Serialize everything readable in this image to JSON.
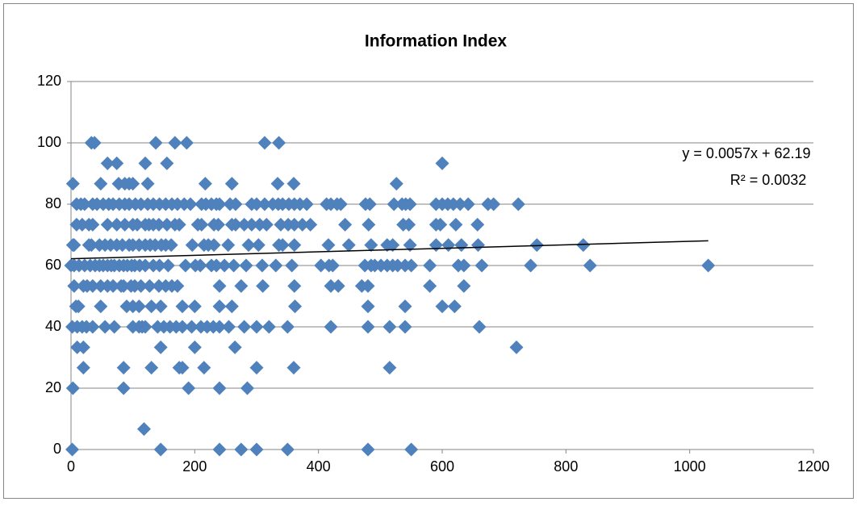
{
  "chart_data": {
    "type": "scatter",
    "title": "Information Index",
    "color": "#4f81bd",
    "xlim": [
      0,
      1200
    ],
    "xticks": [
      0,
      200,
      400,
      600,
      800,
      1000,
      1200
    ],
    "ylim": [
      0,
      120
    ],
    "yticks": [
      0,
      20,
      40,
      60,
      80,
      100,
      120
    ],
    "grid": true,
    "x": [
      33,
      38,
      137,
      168,
      187,
      313,
      336,
      59,
      74,
      120,
      155,
      600,
      3,
      48,
      77,
      87,
      94,
      100,
      124,
      217,
      260,
      334,
      360,
      526,
      9,
      16,
      22,
      35,
      42,
      52,
      61,
      68,
      78,
      87,
      94,
      104,
      113,
      124,
      133,
      143,
      153,
      163,
      172,
      183,
      193,
      211,
      218,
      227,
      235,
      240,
      257,
      266,
      292,
      300,
      313,
      326,
      335,
      342,
      352,
      361,
      370,
      381,
      413,
      420,
      430,
      436,
      476,
      483,
      522,
      535,
      541,
      548,
      590,
      600,
      609,
      618,
      629,
      642,
      674,
      683,
      723,
      9,
      18,
      29,
      35,
      59,
      74,
      87,
      100,
      107,
      120,
      126,
      133,
      142,
      155,
      168,
      175,
      205,
      211,
      231,
      238,
      260,
      266,
      280,
      292,
      305,
      316,
      339,
      351,
      361,
      374,
      387,
      443,
      481,
      537,
      546,
      590,
      597,
      622,
      657,
      3,
      5,
      29,
      33,
      46,
      55,
      64,
      74,
      83,
      94,
      100,
      110,
      120,
      128,
      136,
      146,
      153,
      162,
      196,
      215,
      222,
      231,
      254,
      287,
      303,
      336,
      342,
      361,
      416,
      449,
      485,
      511,
      520,
      548,
      590,
      610,
      631,
      658,
      753,
      828,
      0,
      5,
      13,
      22,
      31,
      39,
      46,
      52,
      59,
      65,
      70,
      78,
      85,
      91,
      98,
      103,
      111,
      120,
      133,
      143,
      157,
      185,
      201,
      209,
      227,
      235,
      248,
      263,
      283,
      309,
      331,
      357,
      404,
      417,
      423,
      475,
      485,
      491,
      501,
      511,
      520,
      528,
      540,
      550,
      580,
      626,
      635,
      664,
      743,
      839,
      1030,
      5,
      20,
      26,
      35,
      48,
      59,
      68,
      81,
      85,
      97,
      103,
      113,
      127,
      142,
      153,
      163,
      172,
      240,
      275,
      310,
      361,
      420,
      432,
      470,
      480,
      580,
      635,
      8,
      12,
      48,
      90,
      100,
      110,
      130,
      145,
      180,
      200,
      240,
      260,
      362,
      480,
      540,
      600,
      620,
      2,
      10,
      18,
      25,
      35,
      55,
      70,
      100,
      110,
      115,
      120,
      140,
      150,
      160,
      170,
      180,
      195,
      210,
      220,
      230,
      240,
      255,
      280,
      300,
      320,
      350,
      420,
      480,
      515,
      540,
      660,
      10,
      20,
      145,
      200,
      265,
      720,
      20,
      85,
      130,
      175,
      180,
      215,
      300,
      360,
      515,
      3,
      85,
      190,
      240,
      285,
      118,
      2,
      145,
      240,
      275,
      300,
      350,
      480,
      550
    ],
    "values": [
      100,
      100,
      100,
      100,
      100,
      100,
      100,
      93.33,
      93.33,
      93.33,
      93.33,
      93.33,
      86.67,
      86.67,
      86.67,
      86.67,
      86.67,
      86.67,
      86.67,
      86.67,
      86.67,
      86.67,
      86.67,
      86.67,
      80,
      80,
      80,
      80,
      80,
      80,
      80,
      80,
      80,
      80,
      80,
      80,
      80,
      80,
      80,
      80,
      80,
      80,
      80,
      80,
      80,
      80,
      80,
      80,
      80,
      80,
      80,
      80,
      80,
      80,
      80,
      80,
      80,
      80,
      80,
      80,
      80,
      80,
      80,
      80,
      80,
      80,
      80,
      80,
      80,
      80,
      80,
      80,
      80,
      80,
      80,
      80,
      80,
      80,
      80,
      80,
      80,
      73.33,
      73.33,
      73.33,
      73.33,
      73.33,
      73.33,
      73.33,
      73.33,
      73.33,
      73.33,
      73.33,
      73.33,
      73.33,
      73.33,
      73.33,
      73.33,
      73.33,
      73.33,
      73.33,
      73.33,
      73.33,
      73.33,
      73.33,
      73.33,
      73.33,
      73.33,
      73.33,
      73.33,
      73.33,
      73.33,
      73.33,
      73.33,
      73.33,
      73.33,
      73.33,
      73.33,
      73.33,
      73.33,
      73.33,
      66.67,
      66.67,
      66.67,
      66.67,
      66.67,
      66.67,
      66.67,
      66.67,
      66.67,
      66.67,
      66.67,
      66.67,
      66.67,
      66.67,
      66.67,
      66.67,
      66.67,
      66.67,
      66.67,
      66.67,
      66.67,
      66.67,
      66.67,
      66.67,
      66.67,
      66.67,
      66.67,
      66.67,
      66.67,
      66.67,
      66.67,
      66.67,
      66.67,
      66.67,
      66.67,
      66.67,
      66.67,
      66.67,
      66.67,
      66.67,
      60,
      60,
      60,
      60,
      60,
      60,
      60,
      60,
      60,
      60,
      60,
      60,
      60,
      60,
      60,
      60,
      60,
      60,
      60,
      60,
      60,
      60,
      60,
      60,
      60,
      60,
      60,
      60,
      60,
      60,
      60,
      60,
      60,
      60,
      60,
      60,
      60,
      60,
      60,
      60,
      60,
      60,
      60,
      60,
      60,
      60,
      60,
      60,
      60,
      60,
      60,
      53.33,
      53.33,
      53.33,
      53.33,
      53.33,
      53.33,
      53.33,
      53.33,
      53.33,
      53.33,
      53.33,
      53.33,
      53.33,
      53.33,
      53.33,
      53.33,
      53.33,
      53.33,
      53.33,
      53.33,
      53.33,
      53.33,
      53.33,
      53.33,
      53.33,
      53.33,
      53.33,
      46.67,
      46.67,
      46.67,
      46.67,
      46.67,
      46.67,
      46.67,
      46.67,
      46.67,
      46.67,
      46.67,
      46.67,
      46.67,
      46.67,
      46.67,
      46.67,
      46.67,
      40,
      40,
      40,
      40,
      40,
      40,
      40,
      40,
      40,
      40,
      40,
      40,
      40,
      40,
      40,
      40,
      40,
      40,
      40,
      40,
      40,
      40,
      40,
      40,
      40,
      40,
      40,
      40,
      40,
      40,
      40,
      33.33,
      33.33,
      33.33,
      33.33,
      33.33,
      33.33,
      26.67,
      26.67,
      26.67,
      26.67,
      26.67,
      26.67,
      26.67,
      26.67,
      26.67,
      20,
      20,
      20,
      20,
      20,
      6.67,
      0,
      0,
      0,
      0,
      0,
      0,
      0,
      0
    ],
    "trendline": {
      "equation": "y = 0.0057x + 62.19",
      "r_squared": "R² = 0.0032",
      "color": "#000000",
      "x": [
        0,
        1030
      ],
      "y": [
        62.19,
        68.06
      ]
    }
  }
}
